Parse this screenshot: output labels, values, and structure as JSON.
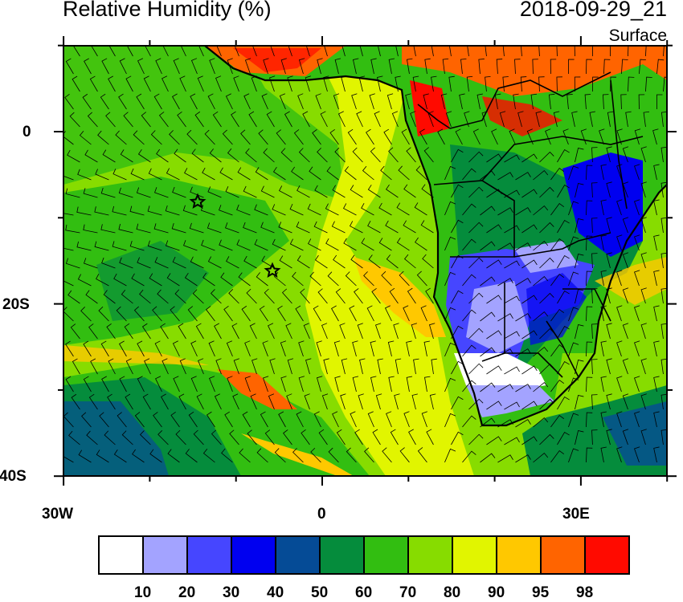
{
  "header": {
    "title": "Relative Humidity (%)",
    "valid_time": "2018-09-29_21",
    "level": "Surface"
  },
  "map": {
    "variable": "Relative Humidity",
    "units": "%",
    "region": "South Atlantic and Southern Africa",
    "lon_labels": [
      "30W",
      "0",
      "30E"
    ],
    "lat_labels": [
      "0",
      "20S",
      "40S"
    ],
    "overlays": [
      "wind-barbs",
      "country-borders",
      "coastlines",
      "star-markers"
    ],
    "markers": [
      {
        "symbol": "star",
        "lon": -14.5,
        "lat": -8
      },
      {
        "symbol": "star",
        "lon": -5.8,
        "lat": -16
      }
    ]
  },
  "colorbar": {
    "labels": [
      "10",
      "20",
      "30",
      "40",
      "50",
      "60",
      "70",
      "80",
      "90",
      "95",
      "98"
    ],
    "colors": [
      "#ffffff",
      "#a3a3ff",
      "#4646ff",
      "#0000f0",
      "#054b96",
      "#058c3c",
      "#32be11",
      "#87dc00",
      "#e1f500",
      "#ffc800",
      "#ff6400",
      "#ff0a00"
    ]
  }
}
